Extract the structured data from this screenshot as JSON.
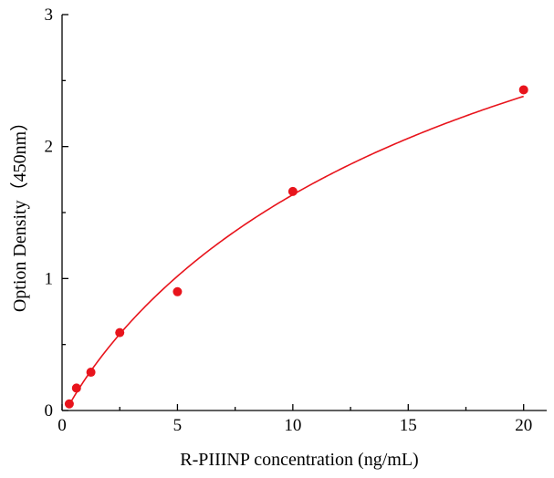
{
  "chart_data": {
    "type": "scatter",
    "xlabel": "R-PIIINP concentration (ng/mL)",
    "ylabel": "Option Density（450nm）",
    "xlim": [
      0,
      21
    ],
    "ylim": [
      0,
      3
    ],
    "x_ticks": [
      0,
      5,
      10,
      15,
      20
    ],
    "y_ticks": [
      0,
      1,
      2,
      3
    ],
    "x_tick_labels": [
      "0",
      "5",
      "10",
      "15",
      "20"
    ],
    "y_tick_labels": [
      "0",
      "1",
      "2",
      "3"
    ],
    "grid": false,
    "series": [
      {
        "points": [
          {
            "x": 0.3125,
            "y": 0.05
          },
          {
            "x": 0.625,
            "y": 0.17
          },
          {
            "x": 1.25,
            "y": 0.29
          },
          {
            "x": 2.5,
            "y": 0.59
          },
          {
            "x": 5,
            "y": 0.9
          },
          {
            "x": 10,
            "y": 1.66
          },
          {
            "x": 20,
            "y": 2.43
          }
        ],
        "color": "#e8141c"
      }
    ],
    "fit_curve": {
      "type": "4PL",
      "min": -0.07,
      "max": 4.88,
      "ec50": 20.44,
      "hill": 0.9,
      "x_range": [
        0.3,
        20
      ],
      "color": "#e8141c"
    }
  }
}
